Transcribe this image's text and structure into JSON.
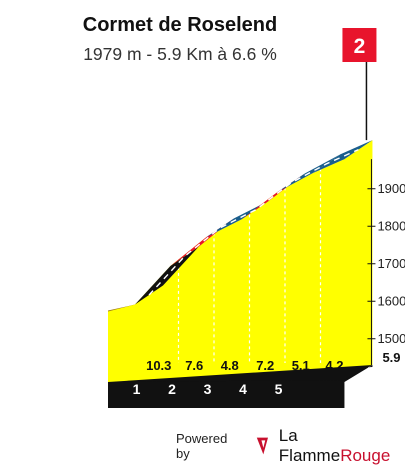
{
  "title": "Cormet de Roselend",
  "subtitle": "1979 m - 5.9 Km à 6.6 %",
  "flag": {
    "label": "2",
    "color": "#e8142c"
  },
  "chart_data": {
    "type": "area",
    "km_markers": [
      "1",
      "2",
      "3",
      "4",
      "5"
    ],
    "total_km_label": "5.9",
    "segments": [
      {
        "km_start": 0,
        "km_end": 1,
        "gradient_pct": 10.3,
        "color": "#111111"
      },
      {
        "km_start": 1,
        "km_end": 2,
        "gradient_pct": 7.6,
        "color": "#e8142c"
      },
      {
        "km_start": 2,
        "km_end": 3,
        "gradient_pct": 4.8,
        "color": "#1a5e8c"
      },
      {
        "km_start": 3,
        "km_end": 4,
        "gradient_pct": 7.2,
        "color": "#e8142c"
      },
      {
        "km_start": 4,
        "km_end": 5,
        "gradient_pct": 5.1,
        "color": "#1a5e8c"
      },
      {
        "km_start": 5,
        "km_end": 5.9,
        "gradient_pct": 4.2,
        "color": "#1a5e8c"
      }
    ],
    "y_ticks": [
      "1500m",
      "1600m",
      "1700m",
      "1800m",
      "1900m"
    ],
    "y_tick_values": [
      1500,
      1600,
      1700,
      1800,
      1900
    ],
    "profile_color": "#ffff00",
    "summit_altitude_m": 1979
  },
  "footer": {
    "powered_by": "Powered by",
    "brand_part1": "La Flamme",
    "brand_part2": "Rouge"
  }
}
